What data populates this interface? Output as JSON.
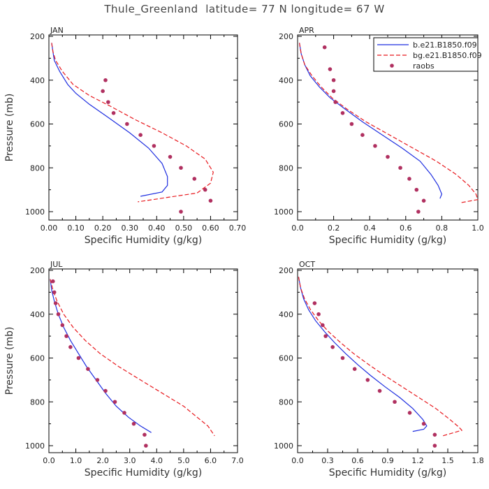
{
  "title": "Thule_Greenland  latitude= 77 N longitude= 67 W",
  "colors": {
    "model1": "#1f2fe0",
    "model2": "#e8191e",
    "obs": "#b03060"
  },
  "legend": {
    "position": "top-right",
    "entries": [
      {
        "label": "b.e21.B1850.f09",
        "style": "solid",
        "color": "#1f2fe0"
      },
      {
        "label": "bg.e21.B1850.f09",
        "style": "dashed",
        "color": "#e8191e"
      },
      {
        "label": "raobs",
        "style": "dots",
        "color": "#b03060"
      }
    ]
  },
  "chart_data": [
    {
      "type": "line",
      "panel": "JAN",
      "xlabel": "Specific Humidity (g/kg)",
      "ylabel": "Pressure (mb)",
      "xlim": [
        0,
        0.7
      ],
      "ylim": [
        1000,
        200
      ],
      "xticks": [
        "0.00",
        "0.10",
        "0.20",
        "0.30",
        "0.40",
        "0.50",
        "0.60",
        "0.70"
      ],
      "xtick_values": [
        0,
        0.1,
        0.2,
        0.3,
        0.4,
        0.5,
        0.6,
        0.7
      ],
      "yticks": [
        "200",
        "400",
        "600",
        "800",
        "1000"
      ],
      "ytick_values": [
        200,
        400,
        600,
        800,
        1000
      ],
      "series": [
        {
          "name": "b.e21.B1850.f09",
          "style": "solid",
          "color": "#1f2fe0",
          "points": [
            [
              0.01,
              230
            ],
            [
              0.015,
              270
            ],
            [
              0.02,
              310
            ],
            [
              0.04,
              360
            ],
            [
              0.07,
              420
            ],
            [
              0.1,
              460
            ],
            [
              0.15,
              510
            ],
            [
              0.22,
              570
            ],
            [
              0.3,
              640
            ],
            [
              0.37,
              710
            ],
            [
              0.42,
              780
            ],
            [
              0.44,
              840
            ],
            [
              0.44,
              880
            ],
            [
              0.42,
              910
            ],
            [
              0.34,
              930
            ]
          ]
        },
        {
          "name": "bg.e21.B1850.f09",
          "style": "dashed",
          "color": "#e8191e",
          "points": [
            [
              0.01,
              230
            ],
            [
              0.015,
              270
            ],
            [
              0.025,
              310
            ],
            [
              0.05,
              360
            ],
            [
              0.09,
              420
            ],
            [
              0.15,
              470
            ],
            [
              0.23,
              520
            ],
            [
              0.32,
              580
            ],
            [
              0.42,
              640
            ],
            [
              0.51,
              700
            ],
            [
              0.58,
              760
            ],
            [
              0.61,
              820
            ],
            [
              0.6,
              870
            ],
            [
              0.55,
              915
            ],
            [
              0.33,
              955
            ]
          ]
        },
        {
          "name": "raobs",
          "style": "dots",
          "color": "#b03060",
          "points": [
            [
              0.21,
              400
            ],
            [
              0.2,
              450
            ],
            [
              0.22,
              500
            ],
            [
              0.24,
              550
            ],
            [
              0.29,
              600
            ],
            [
              0.34,
              650
            ],
            [
              0.39,
              700
            ],
            [
              0.45,
              750
            ],
            [
              0.49,
              800
            ],
            [
              0.54,
              850
            ],
            [
              0.58,
              900
            ],
            [
              0.6,
              950
            ],
            [
              0.49,
              1000
            ]
          ]
        }
      ]
    },
    {
      "type": "line",
      "panel": "APR",
      "xlabel": "Specific Humidity (g/kg)",
      "ylabel": "",
      "xlim": [
        0,
        1.0
      ],
      "ylim": [
        1000,
        200
      ],
      "xticks": [
        "0.0",
        "0.2",
        "0.4",
        "0.6",
        "0.8",
        "1.0"
      ],
      "xtick_values": [
        0,
        0.2,
        0.4,
        0.6,
        0.8,
        1.0
      ],
      "yticks": [
        "200",
        "400",
        "600",
        "800",
        "1000"
      ],
      "ytick_values": [
        200,
        400,
        600,
        800,
        1000
      ],
      "series": [
        {
          "name": "b.e21.B1850.f09",
          "style": "solid",
          "color": "#1f2fe0",
          "points": [
            [
              0.01,
              230
            ],
            [
              0.02,
              280
            ],
            [
              0.04,
              330
            ],
            [
              0.07,
              380
            ],
            [
              0.12,
              430
            ],
            [
              0.18,
              480
            ],
            [
              0.26,
              530
            ],
            [
              0.36,
              590
            ],
            [
              0.47,
              650
            ],
            [
              0.58,
              710
            ],
            [
              0.68,
              770
            ],
            [
              0.74,
              830
            ],
            [
              0.78,
              880
            ],
            [
              0.8,
              920
            ],
            [
              0.79,
              940
            ]
          ]
        },
        {
          "name": "bg.e21.B1850.f09",
          "style": "dashed",
          "color": "#e8191e",
          "points": [
            [
              0.01,
              230
            ],
            [
              0.02,
              280
            ],
            [
              0.04,
              330
            ],
            [
              0.08,
              380
            ],
            [
              0.13,
              430
            ],
            [
              0.19,
              480
            ],
            [
              0.27,
              530
            ],
            [
              0.38,
              590
            ],
            [
              0.51,
              650
            ],
            [
              0.64,
              710
            ],
            [
              0.77,
              770
            ],
            [
              0.88,
              830
            ],
            [
              0.95,
              880
            ],
            [
              0.99,
              920
            ],
            [
              1.0,
              945
            ],
            [
              0.9,
              960
            ]
          ]
        },
        {
          "name": "raobs",
          "style": "dots",
          "color": "#b03060",
          "points": [
            [
              0.15,
              250
            ],
            [
              0.18,
              350
            ],
            [
              0.2,
              400
            ],
            [
              0.2,
              450
            ],
            [
              0.21,
              500
            ],
            [
              0.25,
              550
            ],
            [
              0.3,
              600
            ],
            [
              0.36,
              650
            ],
            [
              0.43,
              700
            ],
            [
              0.5,
              750
            ],
            [
              0.57,
              800
            ],
            [
              0.62,
              850
            ],
            [
              0.66,
              900
            ],
            [
              0.7,
              950
            ],
            [
              0.67,
              1000
            ]
          ]
        }
      ]
    },
    {
      "type": "line",
      "panel": "JUL",
      "xlabel": "Specific Humidity (g/kg)",
      "ylabel": "Pressure (mb)",
      "xlim": [
        0,
        7.0
      ],
      "ylim": [
        1000,
        200
      ],
      "xticks": [
        "0.0",
        "1.0",
        "2.0",
        "3.0",
        "4.0",
        "5.0",
        "6.0",
        "7.0"
      ],
      "xtick_values": [
        0,
        1,
        2,
        3,
        4,
        5,
        6,
        7
      ],
      "yticks": [
        "200",
        "400",
        "600",
        "800",
        "1000"
      ],
      "ytick_values": [
        200,
        400,
        600,
        800,
        1000
      ],
      "series": [
        {
          "name": "b.e21.B1850.f09",
          "style": "solid",
          "color": "#1f2fe0",
          "points": [
            [
              0.05,
              240
            ],
            [
              0.1,
              290
            ],
            [
              0.2,
              340
            ],
            [
              0.35,
              400
            ],
            [
              0.55,
              460
            ],
            [
              0.8,
              520
            ],
            [
              1.1,
              580
            ],
            [
              1.4,
              640
            ],
            [
              1.75,
              700
            ],
            [
              2.1,
              760
            ],
            [
              2.5,
              820
            ],
            [
              2.95,
              870
            ],
            [
              3.4,
              910
            ],
            [
              3.8,
              940
            ]
          ]
        },
        {
          "name": "bg.e21.B1850.f09",
          "style": "dashed",
          "color": "#e8191e",
          "points": [
            [
              0.05,
              240
            ],
            [
              0.15,
              290
            ],
            [
              0.3,
              340
            ],
            [
              0.55,
              400
            ],
            [
              0.9,
              460
            ],
            [
              1.35,
              520
            ],
            [
              1.9,
              580
            ],
            [
              2.6,
              640
            ],
            [
              3.4,
              700
            ],
            [
              4.2,
              760
            ],
            [
              5.0,
              820
            ],
            [
              5.5,
              870
            ],
            [
              5.9,
              910
            ],
            [
              6.15,
              955
            ]
          ]
        },
        {
          "name": "raobs",
          "style": "dots",
          "color": "#b03060",
          "points": [
            [
              0.15,
              250
            ],
            [
              0.2,
              300
            ],
            [
              0.25,
              350
            ],
            [
              0.35,
              400
            ],
            [
              0.5,
              450
            ],
            [
              0.65,
              500
            ],
            [
              0.8,
              550
            ],
            [
              1.1,
              600
            ],
            [
              1.45,
              650
            ],
            [
              1.8,
              700
            ],
            [
              2.1,
              750
            ],
            [
              2.45,
              800
            ],
            [
              2.8,
              850
            ],
            [
              3.15,
              900
            ],
            [
              3.55,
              950
            ],
            [
              3.6,
              1000
            ]
          ]
        }
      ]
    },
    {
      "type": "line",
      "panel": "OCT",
      "xlabel": "Specific Humidity (g/kg)",
      "ylabel": "",
      "xlim": [
        0,
        1.8
      ],
      "ylim": [
        1000,
        200
      ],
      "xticks": [
        "0.0",
        "0.3",
        "0.6",
        "0.9",
        "1.2",
        "1.5",
        "1.8"
      ],
      "xtick_values": [
        0,
        0.3,
        0.6,
        0.9,
        1.2,
        1.5,
        1.8
      ],
      "yticks": [
        "200",
        "400",
        "600",
        "800",
        "1000"
      ],
      "ytick_values": [
        200,
        400,
        600,
        800,
        1000
      ],
      "series": [
        {
          "name": "b.e21.B1850.f09",
          "style": "solid",
          "color": "#1f2fe0",
          "points": [
            [
              0.01,
              230
            ],
            [
              0.03,
              280
            ],
            [
              0.06,
              330
            ],
            [
              0.11,
              380
            ],
            [
              0.18,
              430
            ],
            [
              0.27,
              480
            ],
            [
              0.37,
              530
            ],
            [
              0.48,
              580
            ],
            [
              0.6,
              630
            ],
            [
              0.73,
              680
            ],
            [
              0.87,
              730
            ],
            [
              1.02,
              780
            ],
            [
              1.15,
              830
            ],
            [
              1.25,
              880
            ],
            [
              1.29,
              910
            ],
            [
              1.26,
              925
            ],
            [
              1.15,
              935
            ]
          ]
        },
        {
          "name": "bg.e21.B1850.f09",
          "style": "dashed",
          "color": "#e8191e",
          "points": [
            [
              0.01,
              230
            ],
            [
              0.03,
              280
            ],
            [
              0.07,
              330
            ],
            [
              0.13,
              380
            ],
            [
              0.21,
              430
            ],
            [
              0.31,
              480
            ],
            [
              0.43,
              530
            ],
            [
              0.56,
              580
            ],
            [
              0.71,
              630
            ],
            [
              0.87,
              680
            ],
            [
              1.04,
              730
            ],
            [
              1.21,
              780
            ],
            [
              1.38,
              830
            ],
            [
              1.52,
              880
            ],
            [
              1.61,
              915
            ],
            [
              1.64,
              930
            ],
            [
              1.45,
              955
            ]
          ]
        },
        {
          "name": "raobs",
          "style": "dots",
          "color": "#b03060",
          "points": [
            [
              0.17,
              350
            ],
            [
              0.21,
              400
            ],
            [
              0.25,
              450
            ],
            [
              0.28,
              500
            ],
            [
              0.35,
              550
            ],
            [
              0.45,
              600
            ],
            [
              0.57,
              650
            ],
            [
              0.7,
              700
            ],
            [
              0.82,
              750
            ],
            [
              0.97,
              800
            ],
            [
              1.12,
              850
            ],
            [
              1.26,
              900
            ],
            [
              1.37,
              950
            ],
            [
              1.37,
              1000
            ]
          ]
        }
      ]
    }
  ]
}
